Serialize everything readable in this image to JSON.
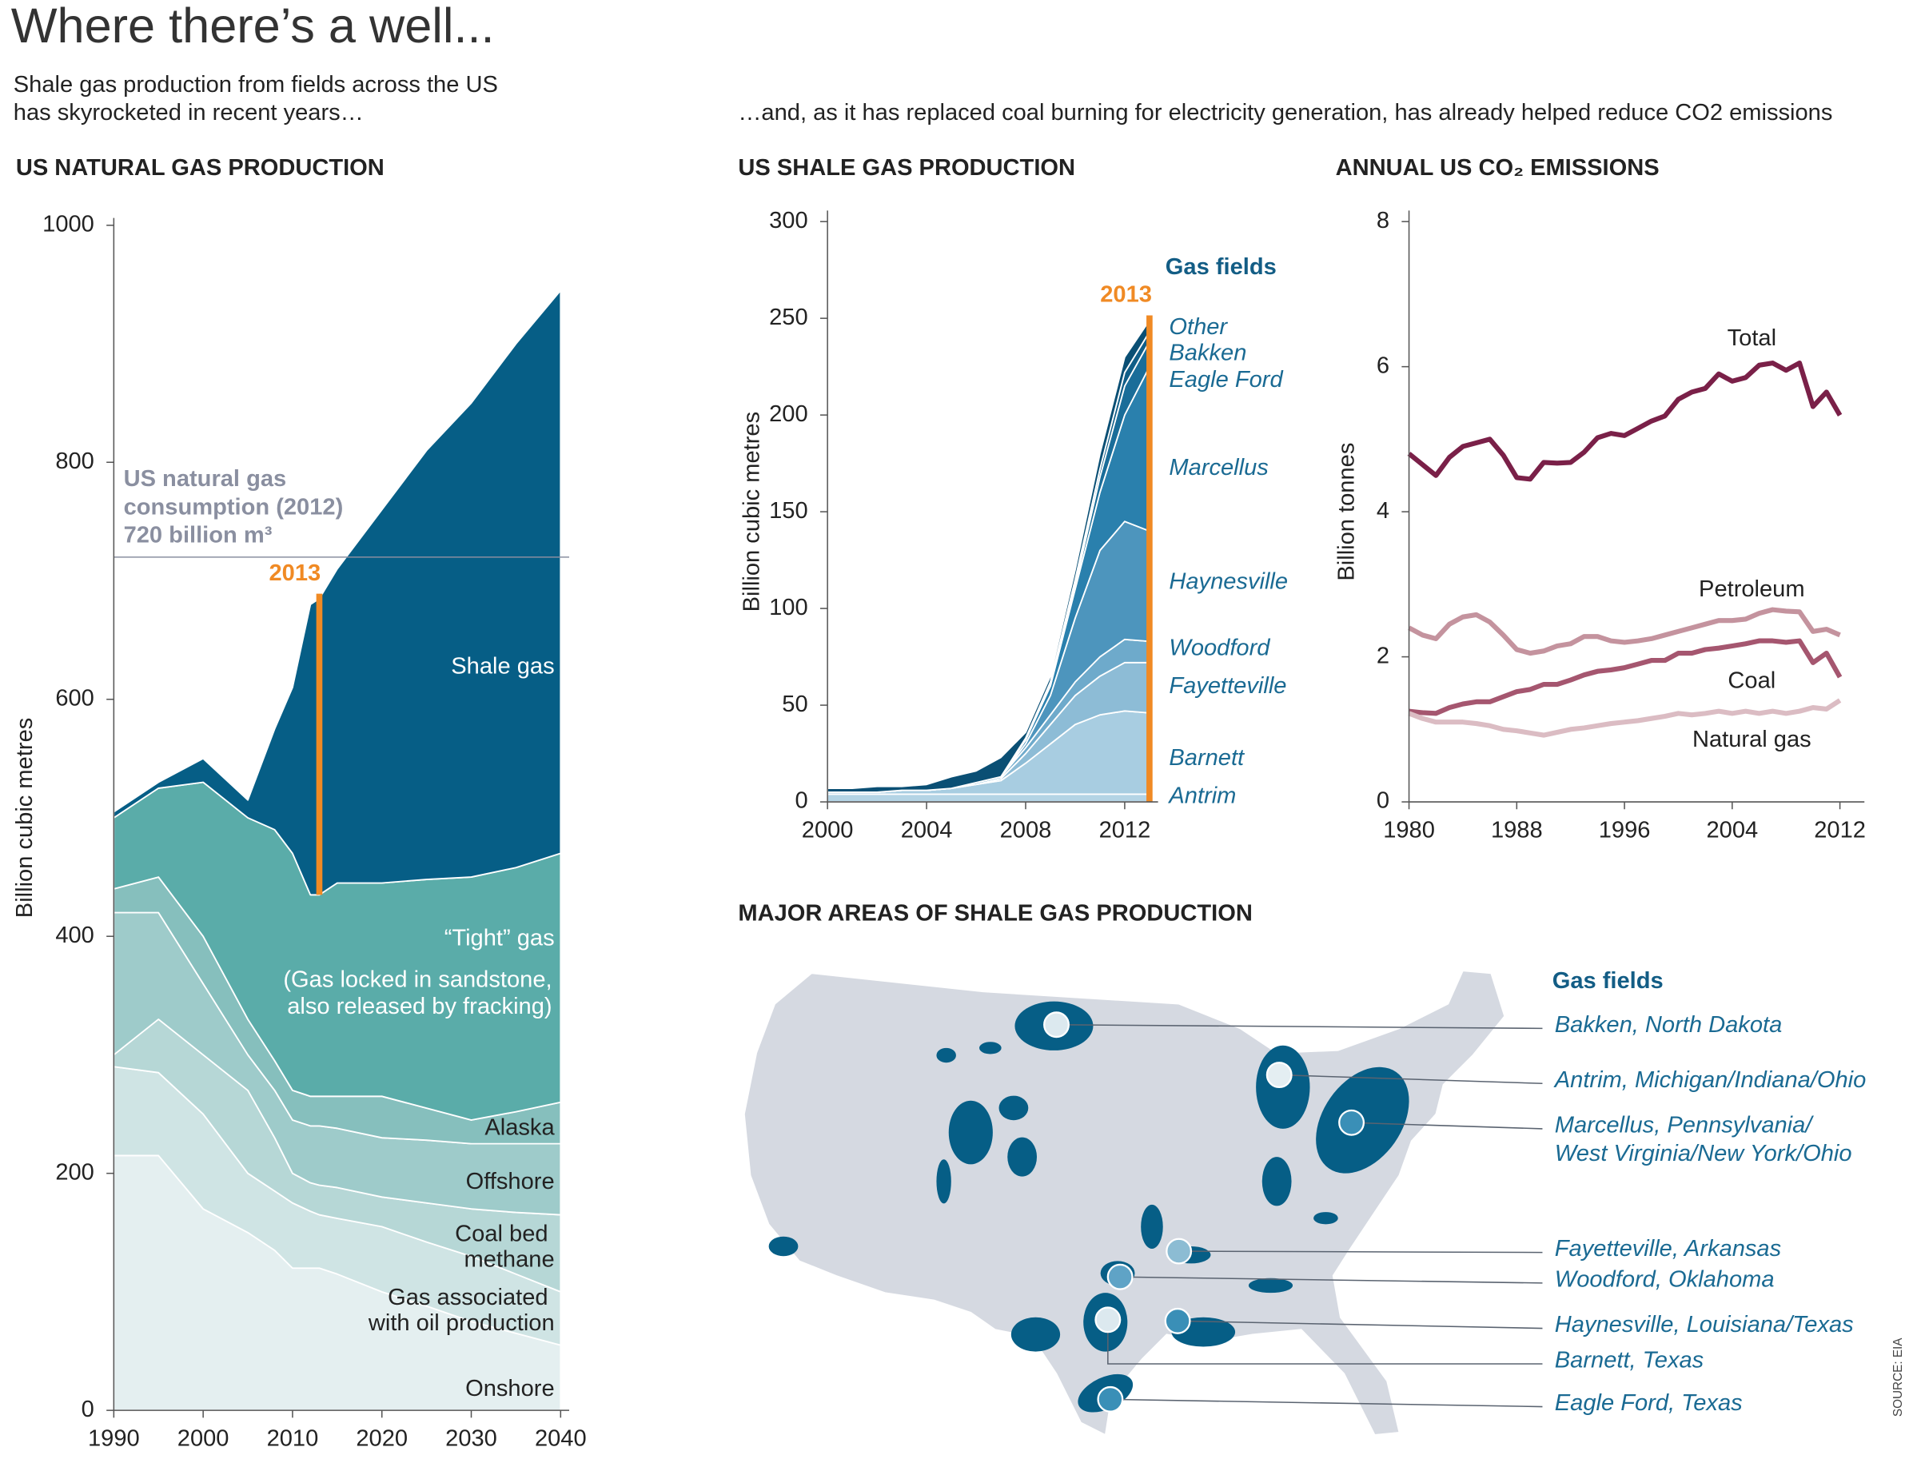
{
  "title": "Where there’s a well...",
  "subtitle_left": [
    "Shale gas  production from fields across the US",
    "has skyrocketed in recent years…"
  ],
  "subtitle_right": "…and, as it has replaced coal burning for electricity generation, has already helped reduce CO2 emissions",
  "source": "SOURCE: EIA",
  "chart_data": [
    {
      "type": "area",
      "stacked": true,
      "title": "US NATURAL GAS PRODUCTION",
      "ylabel": "Billion cubic metres",
      "x": [
        1990,
        1995,
        2000,
        2005,
        2008,
        2010,
        2012,
        2013,
        2015,
        2020,
        2025,
        2030,
        2035,
        2040
      ],
      "xlim": [
        1990,
        2040
      ],
      "ylim": [
        0,
        1000
      ],
      "xticks": [
        1990,
        2000,
        2010,
        2020,
        2030,
        2040
      ],
      "yticks": [
        0,
        200,
        400,
        600,
        800,
        1000
      ],
      "series": [
        {
          "name": "Onshore",
          "color": "#e4eff0",
          "values": [
            215,
            215,
            170,
            150,
            135,
            120,
            120,
            120,
            115,
            100,
            88,
            75,
            65,
            55
          ]
        },
        {
          "name": "Gas associated with oil production",
          "color": "#cfe4e4",
          "values": [
            75,
            70,
            80,
            50,
            50,
            55,
            48,
            45,
            47,
            55,
            54,
            55,
            50,
            45
          ]
        },
        {
          "name": "Coal bed methane",
          "color": "#b6d7d6",
          "values": [
            10,
            45,
            50,
            70,
            45,
            25,
            24,
            25,
            26,
            25,
            33,
            40,
            52,
            65
          ]
        },
        {
          "name": "Offshore",
          "color": "#9ecbca",
          "values": [
            120,
            90,
            60,
            30,
            40,
            45,
            48,
            50,
            50,
            50,
            53,
            55,
            58,
            60
          ]
        },
        {
          "name": "Alaska",
          "color": "#86bfbd",
          "values": [
            20,
            30,
            40,
            30,
            25,
            25,
            25,
            25,
            27,
            35,
            27,
            20,
            27,
            35
          ]
        },
        {
          "name": "“Tight” gas",
          "note": [
            "(Gas locked in sandstone,",
            "also released by fracking)"
          ],
          "color": "#5aaca9",
          "values": [
            60,
            75,
            130,
            170,
            195,
            200,
            170,
            170,
            180,
            180,
            193,
            205,
            206,
            210
          ]
        },
        {
          "name": "Shale gas",
          "color": "#065e86",
          "values": [
            5,
            5,
            20,
            15,
            85,
            140,
            245,
            250,
            265,
            315,
            362,
            400,
            442,
            475
          ]
        }
      ],
      "reference_line": {
        "value": 720,
        "label": [
          "US natural gas",
          "consumption (2012)",
          "720 billion m³"
        ],
        "color": "#8a8fa0"
      },
      "marker": {
        "x": 2013,
        "label": "2013",
        "color": "#f08a24"
      }
    },
    {
      "type": "area",
      "stacked": true,
      "title": "US SHALE GAS PRODUCTION",
      "ylabel": "Billion cubic metres",
      "legend_title": "Gas fields",
      "x": [
        2000,
        2001,
        2002,
        2003,
        2004,
        2005,
        2006,
        2007,
        2008,
        2009,
        2010,
        2011,
        2012,
        2013
      ],
      "xlim": [
        2000,
        2013
      ],
      "ylim": [
        0,
        300
      ],
      "xticks": [
        2000,
        2004,
        2008,
        2012
      ],
      "yticks": [
        0,
        50,
        100,
        150,
        200,
        250,
        300
      ],
      "series": [
        {
          "name": "Antrim",
          "color": "#b4d4e5",
          "values": [
            4,
            4,
            4,
            4,
            4,
            4,
            4,
            4,
            4,
            4,
            4,
            4,
            4,
            4
          ]
        },
        {
          "name": "Barnett",
          "color": "#a8cde1",
          "values": [
            1,
            1,
            1,
            2,
            2,
            3,
            5,
            7,
            16,
            26,
            36,
            41,
            43,
            42
          ]
        },
        {
          "name": "Fayetteville",
          "color": "#8dbcd6",
          "values": [
            0,
            0,
            0,
            0,
            0,
            0,
            0,
            1,
            5,
            10,
            15,
            20,
            25,
            26
          ]
        },
        {
          "name": "Woodford",
          "color": "#6eaacb",
          "values": [
            0,
            0,
            0,
            0,
            0,
            0,
            1,
            1,
            3,
            5,
            7,
            10,
            12,
            11
          ]
        },
        {
          "name": "Haynesville",
          "color": "#4d95bd",
          "values": [
            0,
            0,
            0,
            0,
            0,
            0,
            0,
            0,
            2,
            10,
            33,
            55,
            61,
            57
          ]
        },
        {
          "name": "Marcellus",
          "color": "#2a80ad",
          "values": [
            0,
            0,
            0,
            0,
            0,
            0,
            0,
            0,
            2,
            5,
            15,
            30,
            55,
            85
          ]
        },
        {
          "name": "Eagle Ford",
          "color": "#1a6d99",
          "values": [
            0,
            0,
            0,
            0,
            0,
            0,
            0,
            0,
            0,
            0,
            2,
            8,
            15,
            13
          ]
        },
        {
          "name": "Bakken",
          "color": "#105e88",
          "values": [
            0,
            0,
            0,
            0,
            0,
            0,
            0,
            0,
            1,
            2,
            3,
            4,
            7,
            5
          ]
        },
        {
          "name": "Other",
          "color": "#0a4f74",
          "values": [
            2,
            2,
            3,
            2,
            3,
            6,
            6,
            10,
            3,
            3,
            5,
            8,
            8,
            6
          ]
        }
      ],
      "marker": {
        "x": 2013,
        "label": "2013",
        "color": "#f08a24"
      }
    },
    {
      "type": "line",
      "title": "ANNUAL US CO₂ EMISSIONS",
      "ylabel": "Billion tonnes",
      "x": [
        1980,
        1981,
        1982,
        1983,
        1984,
        1985,
        1986,
        1987,
        1988,
        1989,
        1990,
        1991,
        1992,
        1993,
        1994,
        1995,
        1996,
        1997,
        1998,
        1999,
        2000,
        2001,
        2002,
        2003,
        2004,
        2005,
        2006,
        2007,
        2008,
        2009,
        2010,
        2011,
        2012
      ],
      "xlim": [
        1980,
        2012
      ],
      "ylim": [
        0,
        8
      ],
      "xticks": [
        1980,
        1988,
        1996,
        2004,
        2012
      ],
      "yticks": [
        0,
        2,
        4,
        6,
        8
      ],
      "series": [
        {
          "name": "Total",
          "color": "#7a2048",
          "values": [
            4.8,
            4.65,
            4.5,
            4.75,
            4.9,
            4.95,
            5.0,
            4.78,
            4.47,
            4.45,
            4.68,
            4.67,
            4.68,
            4.82,
            5.02,
            5.08,
            5.05,
            5.15,
            5.25,
            5.32,
            5.55,
            5.65,
            5.7,
            5.9,
            5.8,
            5.85,
            6.02,
            6.05,
            5.95,
            6.05,
            5.45,
            5.65,
            5.33
          ]
        },
        {
          "name": "Petroleum",
          "color": "#c4939e",
          "values": [
            2.4,
            2.3,
            2.25,
            2.45,
            2.55,
            2.58,
            2.48,
            2.3,
            2.1,
            2.05,
            2.08,
            2.15,
            2.18,
            2.28,
            2.28,
            2.22,
            2.2,
            2.22,
            2.25,
            2.3,
            2.35,
            2.4,
            2.45,
            2.5,
            2.5,
            2.52,
            2.6,
            2.65,
            2.63,
            2.62,
            2.35,
            2.38,
            2.3
          ]
        },
        {
          "name": "Coal",
          "color": "#a5566f",
          "values": [
            1.25,
            1.23,
            1.22,
            1.3,
            1.35,
            1.38,
            1.38,
            1.45,
            1.52,
            1.55,
            1.62,
            1.62,
            1.68,
            1.75,
            1.8,
            1.82,
            1.85,
            1.9,
            1.95,
            1.95,
            2.05,
            2.05,
            2.1,
            2.12,
            2.15,
            2.18,
            2.22,
            2.22,
            2.2,
            2.22,
            1.92,
            2.05,
            1.72
          ]
        },
        {
          "name": "Natural gas",
          "color": "#dbbcc3",
          "values": [
            1.22,
            1.15,
            1.1,
            1.1,
            1.1,
            1.08,
            1.05,
            1.0,
            0.98,
            0.95,
            0.92,
            0.96,
            1.0,
            1.02,
            1.05,
            1.08,
            1.1,
            1.12,
            1.15,
            1.18,
            1.22,
            1.2,
            1.22,
            1.25,
            1.22,
            1.25,
            1.22,
            1.25,
            1.22,
            1.25,
            1.3,
            1.28,
            1.4
          ]
        }
      ]
    }
  ],
  "map": {
    "title": "MAJOR AREAS OF SHALE GAS PRODUCTION",
    "legend_title": "Gas fields",
    "fields": [
      {
        "label": [
          "Bakken, North Dakota"
        ],
        "color": "#dce9ef"
      },
      {
        "label": [
          "Antrim, Michigan/Indiana/Ohio"
        ],
        "color": "#e4eef2"
      },
      {
        "label": [
          "Marcellus, Pennsylvania/",
          "West Virginia/New York/Ohio"
        ],
        "color": "#3a8fb7"
      },
      {
        "label": [
          "Fayetteville, Arkansas"
        ],
        "color": "#8cbcd3"
      },
      {
        "label": [
          "Woodford, Oklahoma"
        ],
        "color": "#5fa3c6"
      },
      {
        "label": [
          "Haynesville, Louisiana/Texas"
        ],
        "color": "#3a8fb7"
      },
      {
        "label": [
          "Barnett, Texas"
        ],
        "color": "#dce9ef"
      },
      {
        "label": [
          "Eagle Ford, Texas"
        ],
        "color": "#3a8fb7"
      }
    ]
  }
}
